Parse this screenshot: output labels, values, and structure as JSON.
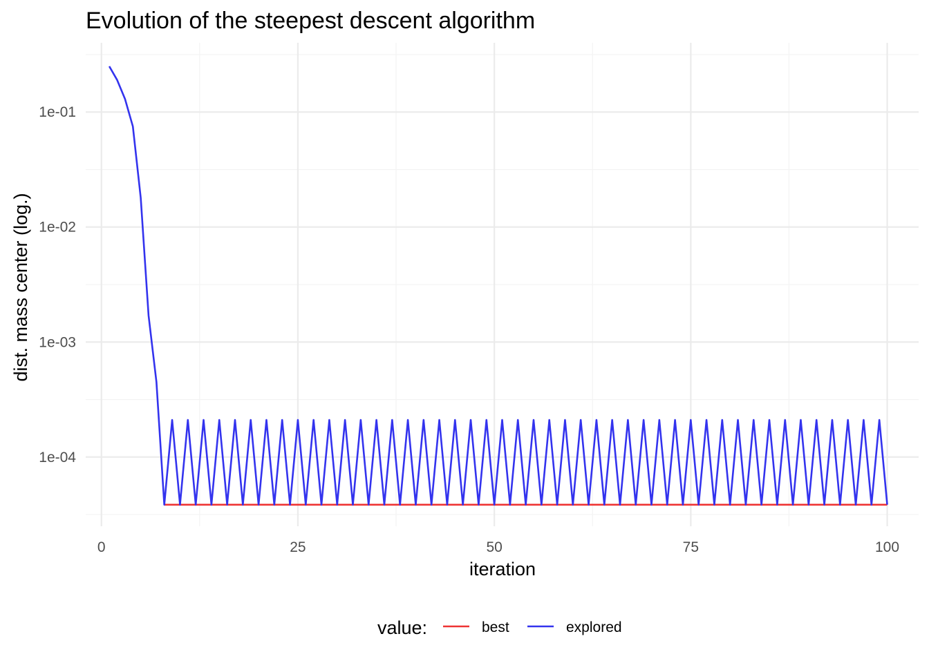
{
  "chart_data": {
    "type": "line",
    "title": "Evolution of the steepest descent algorithm",
    "xlabel": "iteration",
    "ylabel": "dist. mass center (log.)",
    "y_scale": "log10",
    "xlim": [
      -2,
      104
    ],
    "ylim": [
      2.5e-05,
      0.4
    ],
    "x_ticks": [
      0,
      25,
      50,
      75,
      100
    ],
    "x_tick_labels": [
      "0",
      "25",
      "50",
      "75",
      "100"
    ],
    "y_ticks": [
      0.0001,
      0.001,
      0.01,
      0.1
    ],
    "y_tick_labels": [
      "1e-04",
      "1e-03",
      "1e-02",
      "1e-01"
    ],
    "grid": true,
    "legend": {
      "title": "value:",
      "position": "bottom"
    },
    "series": [
      {
        "name": "best",
        "color": "#ee3333",
        "x": [
          8,
          100
        ],
        "y": [
          3.85e-05,
          3.85e-05
        ]
      },
      {
        "name": "explored",
        "color": "#3333ee",
        "x": [
          1,
          2,
          3,
          4,
          5,
          6,
          7,
          8,
          9,
          10,
          11,
          12,
          13,
          14,
          15,
          16,
          17,
          18,
          19,
          20,
          21,
          22,
          23,
          24,
          25,
          26,
          27,
          28,
          29,
          30,
          31,
          32,
          33,
          34,
          35,
          36,
          37,
          38,
          39,
          40,
          41,
          42,
          43,
          44,
          45,
          46,
          47,
          48,
          49,
          50,
          51,
          52,
          53,
          54,
          55,
          56,
          57,
          58,
          59,
          60,
          61,
          62,
          63,
          64,
          65,
          66,
          67,
          68,
          69,
          70,
          71,
          72,
          73,
          74,
          75,
          76,
          77,
          78,
          79,
          80,
          81,
          82,
          83,
          84,
          85,
          86,
          87,
          88,
          89,
          90,
          91,
          92,
          93,
          94,
          95,
          96,
          97,
          98,
          99,
          100
        ],
        "y": [
          0.25,
          0.19,
          0.13,
          0.075,
          0.018,
          0.0017,
          0.00045,
          3.85e-05,
          0.00021,
          3.85e-05,
          0.00021,
          3.85e-05,
          0.00021,
          3.85e-05,
          0.00021,
          3.85e-05,
          0.00021,
          3.85e-05,
          0.00021,
          3.85e-05,
          0.00021,
          3.85e-05,
          0.00021,
          3.85e-05,
          0.00021,
          3.85e-05,
          0.00021,
          3.85e-05,
          0.00021,
          3.85e-05,
          0.00021,
          3.85e-05,
          0.00021,
          3.85e-05,
          0.00021,
          3.85e-05,
          0.00021,
          3.85e-05,
          0.00021,
          3.85e-05,
          0.00021,
          3.85e-05,
          0.00021,
          3.85e-05,
          0.00021,
          3.85e-05,
          0.00021,
          3.85e-05,
          0.00021,
          3.85e-05,
          0.00021,
          3.85e-05,
          0.00021,
          3.85e-05,
          0.00021,
          3.85e-05,
          0.00021,
          3.85e-05,
          0.00021,
          3.85e-05,
          0.00021,
          3.85e-05,
          0.00021,
          3.85e-05,
          0.00021,
          3.85e-05,
          0.00021,
          3.85e-05,
          0.00021,
          3.85e-05,
          0.00021,
          3.85e-05,
          0.00021,
          3.85e-05,
          0.00021,
          3.85e-05,
          0.00021,
          3.85e-05,
          0.00021,
          3.85e-05,
          0.00021,
          3.85e-05,
          0.00021,
          3.85e-05,
          0.00021,
          3.85e-05,
          0.00021,
          3.85e-05,
          0.00021,
          3.85e-05,
          0.00021,
          3.85e-05,
          0.00021,
          3.85e-05,
          0.00021,
          3.85e-05,
          0.00021,
          3.85e-05,
          0.00021,
          3.85e-05
        ]
      }
    ]
  }
}
